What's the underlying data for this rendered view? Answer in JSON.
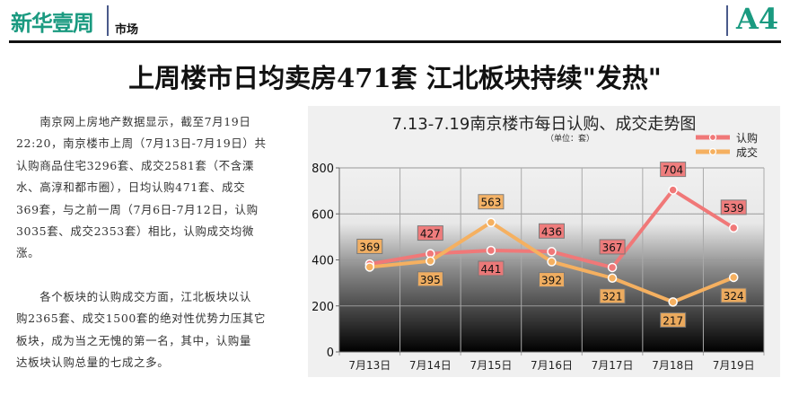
{
  "header": {
    "logo": "新华壹周",
    "section": "市场",
    "page_number": "A4"
  },
  "headline": "上周楼市日均卖房471套 江北板块持续\"发热\"",
  "article": {
    "paragraphs": [
      [
        "　　南京网上房地产数据显示，截至7月19日",
        "22:20，南京楼市上周（7月13日-7月19日）共",
        "认购商品住宅3296套、成交2581套（不含溧",
        "水、高淳和都市圈），日均认购471套、成交",
        "369套，与之前一周（7月6日-7月12日，认购",
        "3035套、成交2353套）相比，认购成交均微",
        "涨。"
      ],
      [
        "　　各个板块的认购成交方面，江北板块以认",
        "购2365套、成交1500套的绝对性优势力压其它",
        "板块，成为当之无愧的第一名，其中，认购量",
        "达板块认购总量的七成之多。"
      ]
    ]
  },
  "chart_data": {
    "type": "line",
    "title": "7.13-7.19南京楼市每日认购、成交走势图",
    "subtitle": "（单位：套）",
    "categories": [
      "7月13日",
      "7月14日",
      "7月15日",
      "7月16日",
      "7月17日",
      "7月18日",
      "7月19日"
    ],
    "series": [
      {
        "name": "认购",
        "values": [
          382,
          427,
          441,
          436,
          367,
          704,
          539
        ],
        "color": "#f07878",
        "labels_visible": [
          false,
          true,
          true,
          true,
          true,
          true,
          true
        ]
      },
      {
        "name": "成交",
        "values": [
          369,
          395,
          563,
          392,
          321,
          217,
          324
        ],
        "color": "#f5b060",
        "labels_visible": [
          true,
          true,
          true,
          true,
          true,
          true,
          true
        ]
      }
    ],
    "ylim": [
      0,
      800
    ],
    "yticks": [
      0,
      200,
      400,
      600,
      800
    ],
    "grid": true,
    "legend": "top-right"
  }
}
